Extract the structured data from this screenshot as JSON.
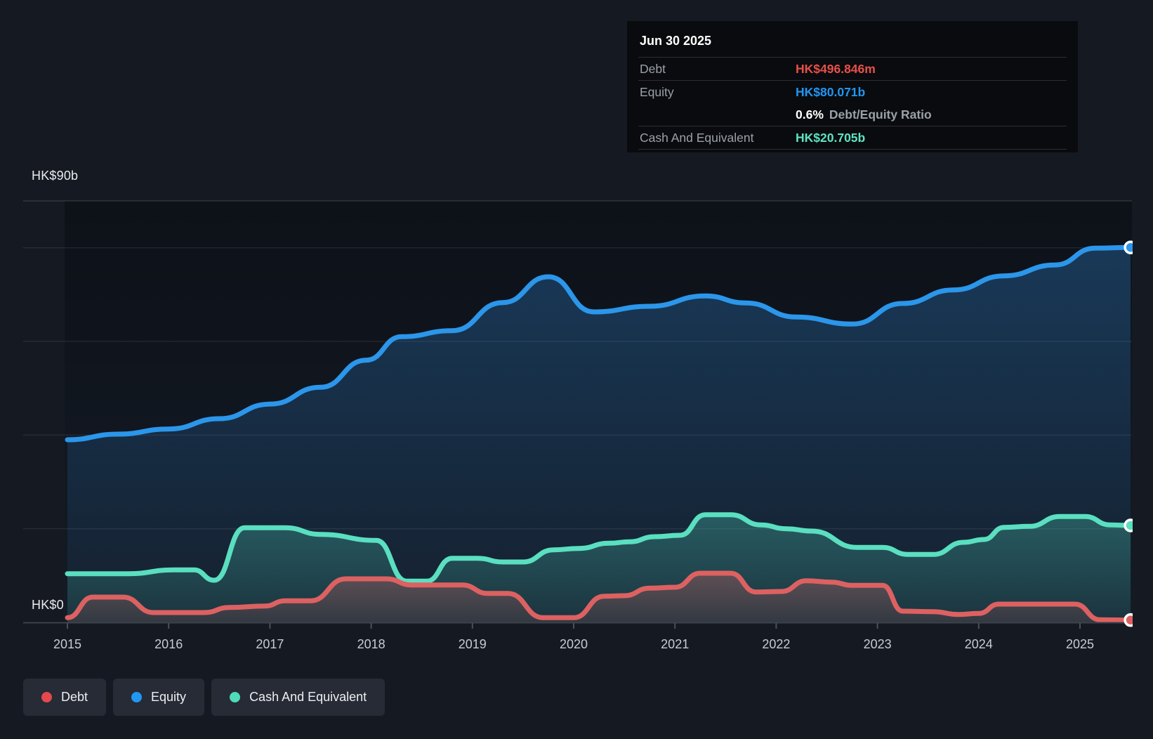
{
  "tooltip": {
    "title": "Jun 30 2025",
    "rows": [
      {
        "label": "Debt",
        "value": "HK$496.846m",
        "color": "#e8504a"
      },
      {
        "label": "Equity",
        "value": "HK$80.071b",
        "color": "#2196f3"
      },
      {
        "label": "Cash And Equivalent",
        "value": "HK$20.705b",
        "color": "#5fe3c4"
      }
    ],
    "ratio": {
      "value": "0.6%",
      "label_suffix": "Debt/Equity Ratio"
    }
  },
  "y_axis": {
    "top_label": "HK$90b",
    "bottom_label": "HK$0",
    "max": 90,
    "min": 0,
    "gridline_values": [
      90,
      80,
      60,
      40,
      20
    ]
  },
  "x_axis": {
    "years": [
      "2015",
      "2016",
      "2017",
      "2018",
      "2019",
      "2020",
      "2021",
      "2022",
      "2023",
      "2024",
      "2025"
    ]
  },
  "legend": {
    "items": [
      {
        "label": "Debt",
        "color": "#e5484d"
      },
      {
        "label": "Equity",
        "color": "#2196f3"
      },
      {
        "label": "Cash And Equivalent",
        "color": "#4fdcba"
      }
    ]
  },
  "chart_data": {
    "type": "area",
    "unit": "HK$ billions",
    "x_range": [
      2015.0,
      2025.5
    ],
    "ylim": [
      0,
      90
    ],
    "grid": true,
    "legend_position": "bottom-left",
    "series": [
      {
        "name": "Equity",
        "line_color": "#2b96ea",
        "end_value_label": "HK$80.071b",
        "points": [
          [
            2015.0,
            39.0
          ],
          [
            2015.5,
            40.2
          ],
          [
            2016.0,
            41.3
          ],
          [
            2016.5,
            43.5
          ],
          [
            2017.0,
            46.6
          ],
          [
            2017.5,
            50.2
          ],
          [
            2017.95,
            56.0
          ],
          [
            2018.3,
            61.0
          ],
          [
            2018.8,
            62.3
          ],
          [
            2019.3,
            68.3
          ],
          [
            2019.75,
            73.8
          ],
          [
            2020.2,
            66.3
          ],
          [
            2020.75,
            67.5
          ],
          [
            2021.3,
            69.7
          ],
          [
            2021.7,
            68.2
          ],
          [
            2022.2,
            65.2
          ],
          [
            2022.75,
            63.7
          ],
          [
            2023.25,
            68.1
          ],
          [
            2023.75,
            71.0
          ],
          [
            2024.25,
            74.0
          ],
          [
            2024.75,
            76.3
          ],
          [
            2025.15,
            79.9
          ],
          [
            2025.5,
            80.071
          ]
        ]
      },
      {
        "name": "Cash And Equivalent",
        "line_color": "#5adfc0",
        "end_value_label": "HK$20.705b",
        "points": [
          [
            2015.0,
            10.4
          ],
          [
            2015.6,
            10.4
          ],
          [
            2016.05,
            11.2
          ],
          [
            2016.25,
            11.2
          ],
          [
            2016.45,
            9.0
          ],
          [
            2016.75,
            20.2
          ],
          [
            2017.15,
            20.2
          ],
          [
            2017.5,
            18.8
          ],
          [
            2018.05,
            17.5
          ],
          [
            2018.35,
            8.8
          ],
          [
            2018.55,
            8.8
          ],
          [
            2018.8,
            13.7
          ],
          [
            2019.05,
            13.7
          ],
          [
            2019.3,
            12.9
          ],
          [
            2019.5,
            12.9
          ],
          [
            2019.8,
            15.5
          ],
          [
            2020.05,
            15.8
          ],
          [
            2020.35,
            16.9
          ],
          [
            2020.55,
            17.2
          ],
          [
            2020.8,
            18.3
          ],
          [
            2021.05,
            18.6
          ],
          [
            2021.3,
            23.0
          ],
          [
            2021.55,
            23.0
          ],
          [
            2021.85,
            20.8
          ],
          [
            2022.1,
            20.0
          ],
          [
            2022.35,
            19.5
          ],
          [
            2022.8,
            16.0
          ],
          [
            2023.05,
            16.0
          ],
          [
            2023.3,
            14.5
          ],
          [
            2023.55,
            14.5
          ],
          [
            2023.85,
            17.1
          ],
          [
            2024.05,
            17.7
          ],
          [
            2024.25,
            20.3
          ],
          [
            2024.5,
            20.5
          ],
          [
            2024.8,
            22.6
          ],
          [
            2025.05,
            22.6
          ],
          [
            2025.3,
            20.8
          ],
          [
            2025.5,
            20.705
          ]
        ]
      },
      {
        "name": "Debt",
        "line_color": "#dd6161",
        "end_value_label": "HK$496.846m",
        "points": [
          [
            2015.0,
            1.0
          ],
          [
            2015.25,
            5.4
          ],
          [
            2015.55,
            5.4
          ],
          [
            2015.85,
            2.1
          ],
          [
            2016.35,
            2.1
          ],
          [
            2016.6,
            3.2
          ],
          [
            2016.95,
            3.5
          ],
          [
            2017.15,
            4.6
          ],
          [
            2017.4,
            4.6
          ],
          [
            2017.75,
            9.3
          ],
          [
            2018.15,
            9.3
          ],
          [
            2018.4,
            8.0
          ],
          [
            2018.9,
            8.0
          ],
          [
            2019.15,
            6.2
          ],
          [
            2019.35,
            6.2
          ],
          [
            2019.7,
            1.0
          ],
          [
            2020.0,
            1.0
          ],
          [
            2020.3,
            5.6
          ],
          [
            2020.5,
            5.7
          ],
          [
            2020.75,
            7.3
          ],
          [
            2021.0,
            7.5
          ],
          [
            2021.25,
            10.5
          ],
          [
            2021.55,
            10.5
          ],
          [
            2021.8,
            6.5
          ],
          [
            2022.05,
            6.6
          ],
          [
            2022.3,
            8.9
          ],
          [
            2022.55,
            8.6
          ],
          [
            2022.75,
            7.9
          ],
          [
            2023.05,
            7.9
          ],
          [
            2023.25,
            2.4
          ],
          [
            2023.55,
            2.3
          ],
          [
            2023.8,
            1.7
          ],
          [
            2024.0,
            1.9
          ],
          [
            2024.2,
            3.9
          ],
          [
            2024.95,
            3.9
          ],
          [
            2025.2,
            0.55
          ],
          [
            2025.5,
            0.497
          ]
        ]
      }
    ]
  }
}
